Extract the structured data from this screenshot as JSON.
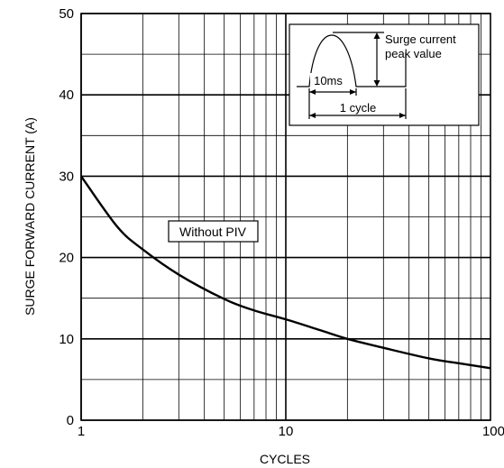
{
  "chart_data": {
    "type": "line",
    "title": "",
    "xlabel": "CYCLES",
    "ylabel": "SURGE FORWARD CURRENT (A)",
    "x_scale": "log",
    "xlim": [
      1,
      100
    ],
    "ylim": [
      0,
      50
    ],
    "x_ticks": [
      "1",
      "10",
      "100"
    ],
    "y_ticks": [
      "0",
      "10",
      "20",
      "30",
      "40",
      "50"
    ],
    "grid": true,
    "series": [
      {
        "name": "Without PIV",
        "x": [
          1,
          1.5,
          2,
          3,
          5,
          7,
          10,
          15,
          20,
          30,
          50,
          70,
          100
        ],
        "y": [
          30,
          23.8,
          21,
          17.9,
          14.9,
          13.5,
          12.4,
          11,
          10,
          8.9,
          7.6,
          7,
          6.4
        ]
      }
    ],
    "inset": {
      "pulse_label": "10ms",
      "cycle_label": "1 cycle",
      "peak_label_line1": "Surge current",
      "peak_label_line2": "peak value"
    }
  }
}
